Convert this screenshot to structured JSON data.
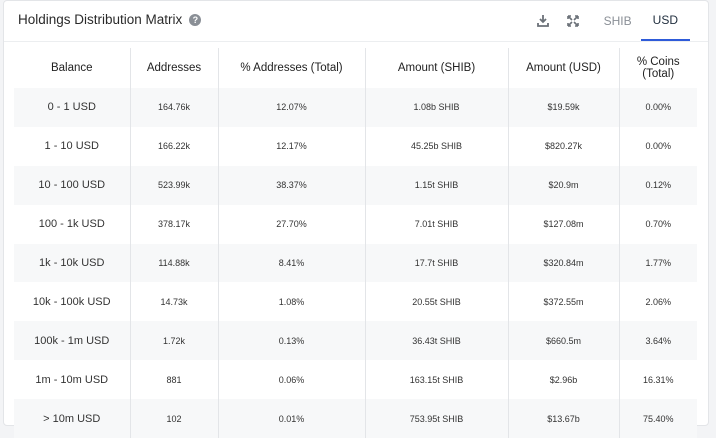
{
  "header": {
    "title": "Holdings Distribution Matrix",
    "help_icon": "question-circle-icon",
    "download_icon": "download-icon",
    "expand_icon": "expand-icon",
    "tabs": [
      {
        "label": "SHIB",
        "active": false
      },
      {
        "label": "USD",
        "active": true
      }
    ]
  },
  "table": {
    "columns": [
      "Balance",
      "Addresses",
      "% Addresses (Total)",
      "Amount (SHIB)",
      "Amount (USD)",
      "% Coins (Total)"
    ],
    "rows": [
      [
        "0 - 1 USD",
        "164.76k",
        "12.07%",
        "1.08b SHIB",
        "$19.59k",
        "0.00%"
      ],
      [
        "1 - 10 USD",
        "166.22k",
        "12.17%",
        "45.25b SHIB",
        "$820.27k",
        "0.00%"
      ],
      [
        "10 - 100 USD",
        "523.99k",
        "38.37%",
        "1.15t SHIB",
        "$20.9m",
        "0.12%"
      ],
      [
        "100 - 1k USD",
        "378.17k",
        "27.70%",
        "7.01t SHIB",
        "$127.08m",
        "0.70%"
      ],
      [
        "1k - 10k USD",
        "114.88k",
        "8.41%",
        "17.7t SHIB",
        "$320.84m",
        "1.77%"
      ],
      [
        "10k - 100k USD",
        "14.73k",
        "1.08%",
        "20.55t SHIB",
        "$372.55m",
        "2.06%"
      ],
      [
        "100k - 1m USD",
        "1.72k",
        "0.13%",
        "36.43t SHIB",
        "$660.5m",
        "3.64%"
      ],
      [
        "1m - 10m USD",
        "881",
        "0.06%",
        "163.15t SHIB",
        "$2.96b",
        "16.31%"
      ],
      [
        "> 10m USD",
        "102",
        "0.01%",
        "753.95t SHIB",
        "$13.67b",
        "75.40%"
      ]
    ]
  },
  "colors": {
    "accent": "#2e5bd9",
    "row_stripe": "#f7f8f9",
    "border": "#e3e5e8"
  }
}
